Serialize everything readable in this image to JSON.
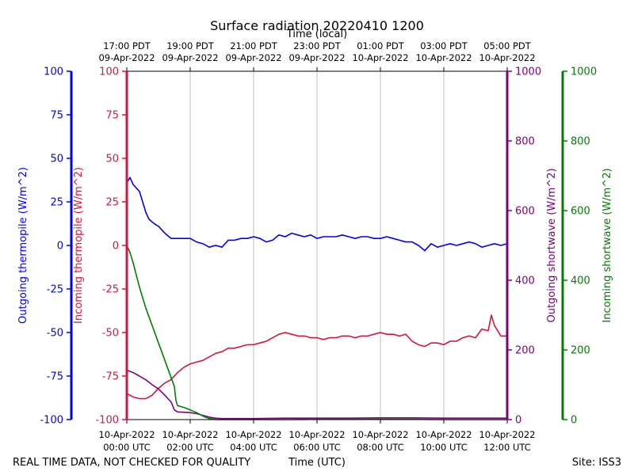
{
  "chart_data": {
    "type": "line",
    "title": "Surface radiation 20220410 1200",
    "top_axis_label": "Time (local)",
    "xlabel": "Time (UTC)",
    "footer_left": "REAL TIME DATA, NOT CHECKED FOR QUALITY",
    "footer_right": "Site: ISS3",
    "x_unit": "hours since 10-Apr-2022 00:00 UTC",
    "xlim": [
      0,
      12
    ],
    "x_ticks_utc": [
      {
        "x": 0,
        "line1": "10-Apr-2022",
        "line2": "00:00 UTC"
      },
      {
        "x": 2,
        "line1": "10-Apr-2022",
        "line2": "02:00 UTC"
      },
      {
        "x": 4,
        "line1": "10-Apr-2022",
        "line2": "04:00 UTC"
      },
      {
        "x": 6,
        "line1": "10-Apr-2022",
        "line2": "06:00 UTC"
      },
      {
        "x": 8,
        "line1": "10-Apr-2022",
        "line2": "08:00 UTC"
      },
      {
        "x": 10,
        "line1": "10-Apr-2022",
        "line2": "10:00 UTC"
      },
      {
        "x": 12,
        "line1": "10-Apr-2022",
        "line2": "12:00 UTC"
      }
    ],
    "x_ticks_local": [
      {
        "x": 0,
        "line1": "17:00 PDT",
        "line2": "09-Apr-2022"
      },
      {
        "x": 2,
        "line1": "19:00 PDT",
        "line2": "09-Apr-2022"
      },
      {
        "x": 4,
        "line1": "21:00 PDT",
        "line2": "09-Apr-2022"
      },
      {
        "x": 6,
        "line1": "23:00 PDT",
        "line2": "09-Apr-2022"
      },
      {
        "x": 8,
        "line1": "01:00 PDT",
        "line2": "10-Apr-2022"
      },
      {
        "x": 10,
        "line1": "03:00 PDT",
        "line2": "10-Apr-2022"
      },
      {
        "x": 12,
        "line1": "05:00 PDT",
        "line2": "10-Apr-2022"
      }
    ],
    "grid": "vertical",
    "axes": {
      "outgoing_thermopile": {
        "label": "Outgoing thermopile (W/m^2)",
        "color": "#0000ff",
        "ylim": [
          -100,
          100
        ],
        "ticks": [
          -100,
          -75,
          -50,
          -25,
          0,
          25,
          50,
          75,
          100
        ]
      },
      "incoming_thermopile": {
        "label": "Incoming thermopile (W/m^2)",
        "color": "#dc143c",
        "ylim": [
          -100,
          100
        ],
        "ticks": [
          -100,
          -75,
          -50,
          -25,
          0,
          25,
          50,
          75,
          100
        ]
      },
      "outgoing_shortwave": {
        "label": "Outgoing shortwave (W/m^2)",
        "color": "#800080",
        "ylim": [
          0,
          1000
        ],
        "ticks": [
          0,
          200,
          400,
          600,
          800,
          1000
        ]
      },
      "incoming_shortwave": {
        "label": "Incoming shortwave (W/m^2)",
        "color": "#008000",
        "ylim": [
          0,
          1000
        ],
        "ticks": [
          0,
          200,
          400,
          600,
          800,
          1000
        ]
      }
    },
    "series": [
      {
        "axis": "outgoing_thermopile",
        "color": "#0000ff",
        "x": [
          0,
          0.1,
          0.2,
          0.4,
          0.5,
          0.6,
          0.7,
          0.9,
          1.0,
          1.2,
          1.4,
          1.6,
          1.8,
          2.0,
          2.2,
          2.4,
          2.6,
          2.8,
          3.0,
          3.2,
          3.4,
          3.6,
          3.8,
          4.0,
          4.2,
          4.4,
          4.6,
          4.8,
          5.0,
          5.2,
          5.4,
          5.6,
          5.8,
          6.0,
          6.2,
          6.4,
          6.6,
          6.8,
          7.0,
          7.2,
          7.4,
          7.6,
          7.8,
          8.0,
          8.2,
          8.4,
          8.6,
          8.8,
          9.0,
          9.2,
          9.4,
          9.6,
          9.8,
          10.0,
          10.2,
          10.4,
          10.6,
          10.8,
          11.0,
          11.2,
          11.4,
          11.6,
          11.8,
          12.0
        ],
        "y": [
          36,
          39,
          35,
          31,
          25,
          19,
          15,
          12,
          11,
          7,
          4,
          4,
          4,
          4,
          2,
          1,
          -1,
          0,
          -1,
          3,
          3,
          4,
          4,
          5,
          4,
          2,
          3,
          6,
          5,
          7,
          6,
          5,
          6,
          4,
          5,
          5,
          5,
          6,
          5,
          4,
          5,
          5,
          4,
          4,
          5,
          4,
          3,
          2,
          2,
          0,
          -3,
          1,
          -1,
          0,
          1,
          0,
          1,
          2,
          1,
          -1,
          0,
          1,
          0,
          1
        ]
      },
      {
        "axis": "incoming_thermopile",
        "color": "#dc143c",
        "x": [
          0,
          0.2,
          0.4,
          0.6,
          0.8,
          1.0,
          1.2,
          1.4,
          1.6,
          1.8,
          2.0,
          2.2,
          2.4,
          2.6,
          2.8,
          3.0,
          3.2,
          3.4,
          3.6,
          3.8,
          4.0,
          4.2,
          4.4,
          4.6,
          4.8,
          5.0,
          5.2,
          5.4,
          5.6,
          5.8,
          6.0,
          6.2,
          6.4,
          6.6,
          6.8,
          7.0,
          7.2,
          7.4,
          7.6,
          7.8,
          8.0,
          8.2,
          8.4,
          8.6,
          8.8,
          9.0,
          9.2,
          9.4,
          9.6,
          9.8,
          10.0,
          10.2,
          10.4,
          10.6,
          10.8,
          11.0,
          11.2,
          11.4,
          11.5,
          11.6,
          11.8,
          12.0
        ],
        "y": [
          -85,
          -87,
          -88,
          -88,
          -86,
          -82,
          -79,
          -77,
          -73,
          -70,
          -68,
          -67,
          -66,
          -64,
          -62,
          -61,
          -59,
          -59,
          -58,
          -57,
          -57,
          -56,
          -55,
          -53,
          -51,
          -50,
          -51,
          -52,
          -52,
          -53,
          -53,
          -54,
          -53,
          -53,
          -52,
          -52,
          -53,
          -52,
          -52,
          -51,
          -50,
          -51,
          -51,
          -52,
          -51,
          -55,
          -57,
          -58,
          -56,
          -56,
          -57,
          -55,
          -55,
          -53,
          -52,
          -53,
          -48,
          -49,
          -40,
          -46,
          -52,
          -52
        ]
      },
      {
        "axis": "outgoing_shortwave",
        "color": "#800080",
        "x": [
          0,
          0.2,
          0.4,
          0.6,
          0.8,
          1.0,
          1.2,
          1.4,
          1.5,
          1.6,
          2.0,
          2.2,
          2.4,
          2.6,
          2.8,
          3.0,
          4.0,
          5.0,
          6.0,
          7.0,
          8.0,
          9.0,
          10.0,
          11.0,
          12.0
        ],
        "y": [
          142,
          135,
          125,
          114,
          100,
          88,
          70,
          50,
          28,
          22,
          20,
          17,
          12,
          7,
          4,
          3,
          3,
          4,
          4,
          4,
          5,
          5,
          4,
          4,
          4
        ]
      },
      {
        "axis": "incoming_shortwave",
        "color": "#008000",
        "x": [
          0,
          0.1,
          0.2,
          0.3,
          0.4,
          0.6,
          0.8,
          1.0,
          1.2,
          1.4,
          1.5,
          1.55,
          1.6,
          1.8,
          2.0,
          2.2,
          2.4,
          2.6,
          2.8,
          3.0,
          4.0,
          5.0,
          6.0,
          7.0,
          8.0,
          9.0,
          10.0,
          11.0,
          12.0
        ],
        "y": [
          500,
          480,
          450,
          415,
          380,
          320,
          270,
          220,
          170,
          120,
          95,
          55,
          40,
          35,
          28,
          20,
          10,
          3,
          0,
          0,
          0,
          0,
          1,
          1,
          1,
          1,
          0,
          0,
          0
        ]
      }
    ]
  }
}
